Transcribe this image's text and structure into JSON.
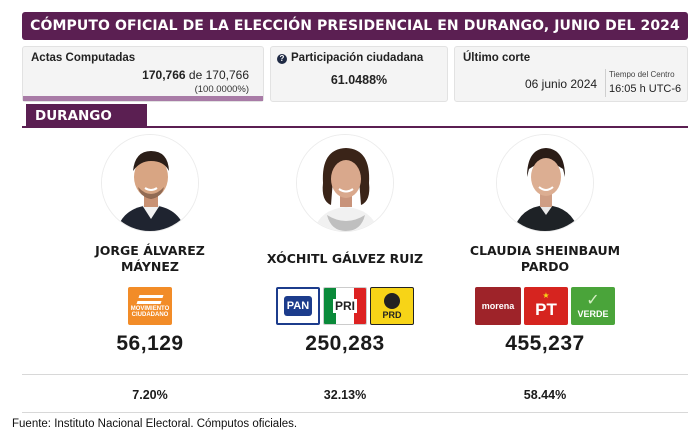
{
  "title": "CÓMPUTO OFICIAL DE LA ELECCIÓN PRESIDENCIAL EN DURANGO, JUNIO DEL 2024",
  "stats": {
    "actas": {
      "label": "Actas Computadas",
      "computed": "170,766",
      "connector": "de",
      "total": "170,766",
      "percent": "(100.0000%)",
      "progress_fraction": 1.0
    },
    "participacion": {
      "label": "Participación ciudadana",
      "value": "61.0488%",
      "icon": "help-icon"
    },
    "corte": {
      "label": "Último corte",
      "date": "06 junio 2024",
      "tz_label": "Tiempo del Centro",
      "time": "16:05 h UTC-6"
    }
  },
  "state": "DURANGO",
  "candidates": [
    {
      "name_line1": "JORGE ÁLVAREZ",
      "name_line2": "MÁYNEZ",
      "parties": [
        {
          "name": "MOVIMIENTO CIUDADANO",
          "color": "#f28c28"
        }
      ],
      "votes": "56,129",
      "percent": "7.20%"
    },
    {
      "name_line1": "XÓCHITL GÁLVEZ RUIZ",
      "name_line2": "",
      "parties": [
        {
          "name": "PAN",
          "color": "#1c3c8c"
        },
        {
          "name": "PRI",
          "color": "#d22"
        },
        {
          "name": "PRD",
          "color": "#f7d417"
        }
      ],
      "votes": "250,283",
      "percent": "32.13%"
    },
    {
      "name_line1": "CLAUDIA SHEINBAUM",
      "name_line2": "PARDO",
      "parties": [
        {
          "name": "morena",
          "color": "#9e2329"
        },
        {
          "name": "PT",
          "color": "#d6241f"
        },
        {
          "name": "VERDE",
          "color": "#4aa43a"
        }
      ],
      "votes": "455,237",
      "percent": "58.44%"
    }
  ],
  "source": "Fuente: Instituto Nacional Electoral. Cómputos oficiales.",
  "colors": {
    "brand": "#5b1f52",
    "progress": "#a87ba6"
  }
}
